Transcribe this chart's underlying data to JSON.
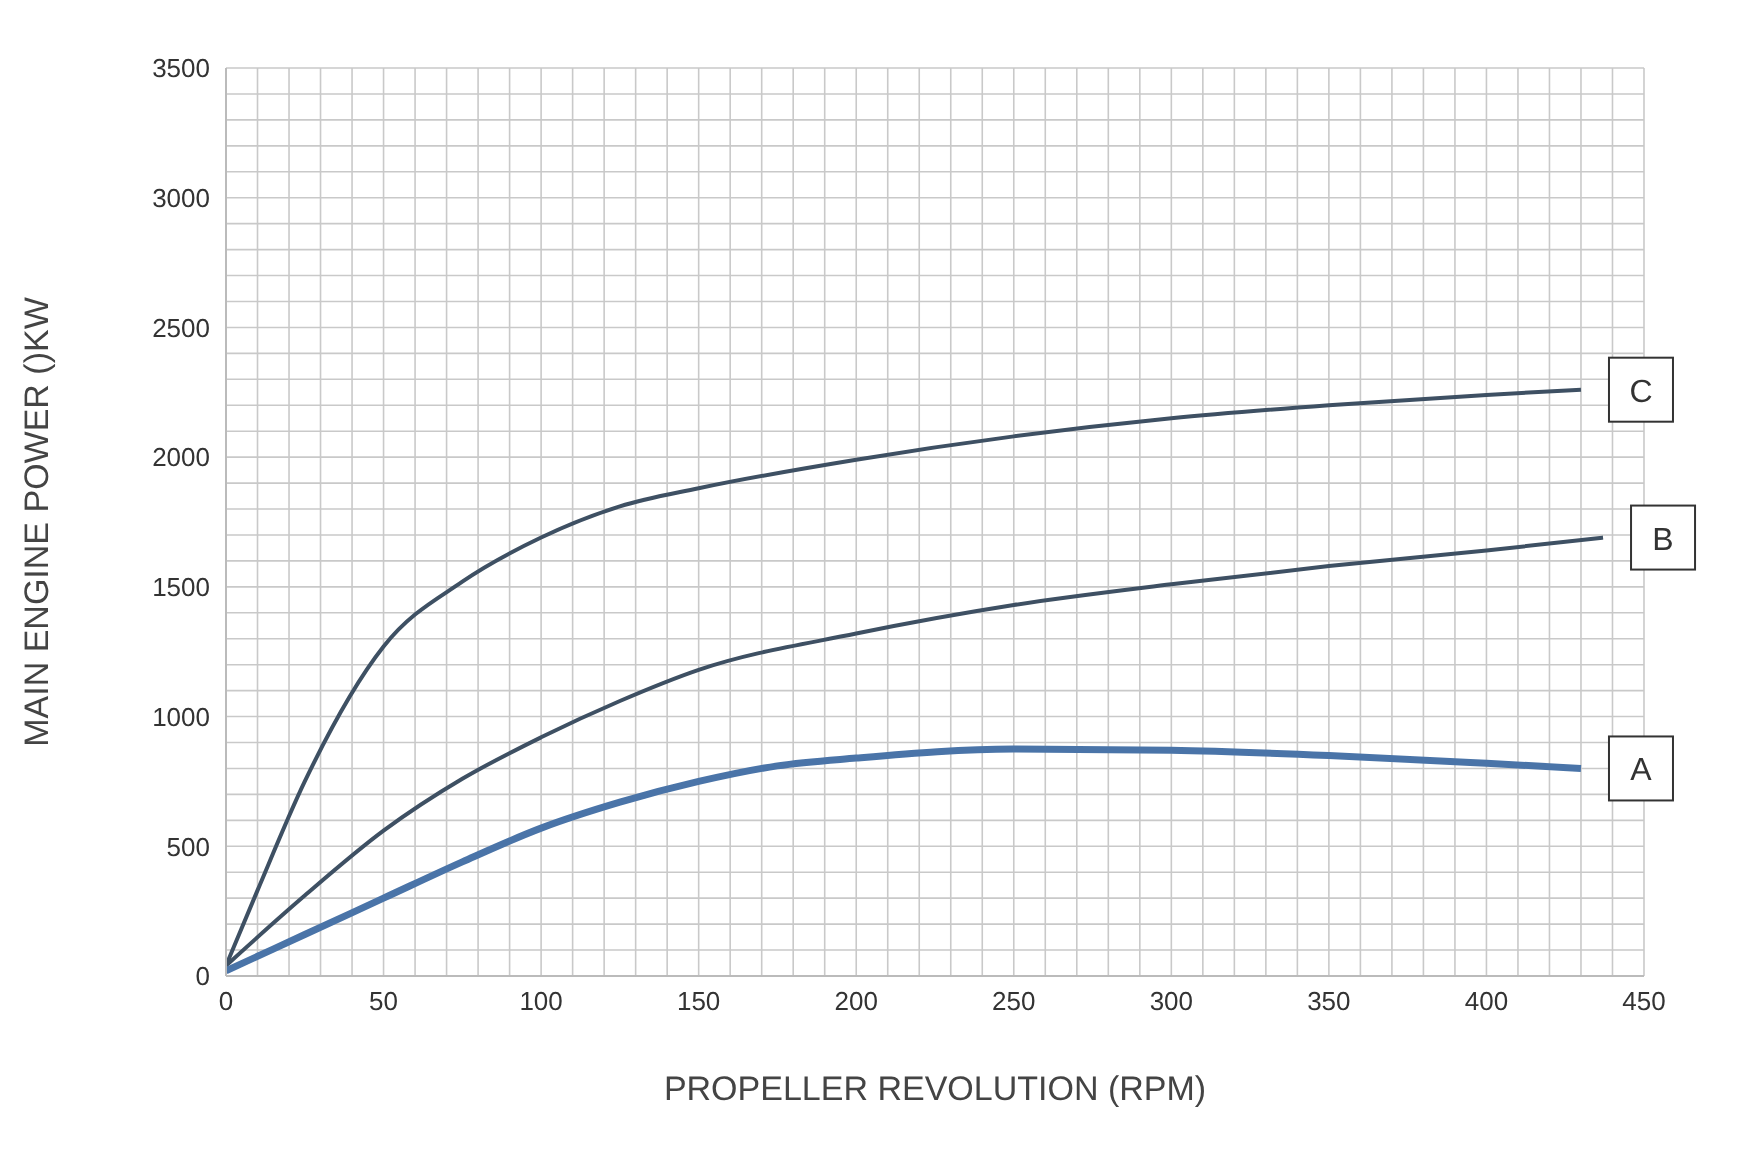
{
  "chart_data": {
    "type": "line",
    "xlabel": "PROPELLER REVOLUTION (RPM)",
    "ylabel": "MAIN ENGINE POWER ()KW",
    "xlim": [
      0,
      450
    ],
    "ylim": [
      0,
      3500
    ],
    "xticks": [
      0,
      {
        "value": 10,
        "label": null
      },
      {
        "value": 20,
        "label": null
      },
      {
        "value": 30,
        "label": null
      },
      {
        "value": 40,
        "label": null
      },
      50,
      {
        "value": 60,
        "label": null
      },
      {
        "value": 70,
        "label": null
      },
      {
        "value": 80,
        "label": null
      },
      {
        "value": 90,
        "label": null
      },
      100,
      {
        "value": 110,
        "label": null
      },
      {
        "value": 120,
        "label": null
      },
      {
        "value": 130,
        "label": null
      },
      {
        "value": 140,
        "label": null
      },
      150,
      {
        "value": 160,
        "label": null
      },
      {
        "value": 170,
        "label": null
      },
      {
        "value": 180,
        "label": null
      },
      {
        "value": 190,
        "label": null
      },
      200,
      {
        "value": 210,
        "label": null
      },
      {
        "value": 220,
        "label": null
      },
      {
        "value": 230,
        "label": null
      },
      {
        "value": 240,
        "label": null
      },
      250,
      {
        "value": 260,
        "label": null
      },
      {
        "value": 270,
        "label": null
      },
      {
        "value": 280,
        "label": null
      },
      {
        "value": 290,
        "label": null
      },
      300,
      {
        "value": 310,
        "label": null
      },
      {
        "value": 320,
        "label": null
      },
      {
        "value": 330,
        "label": null
      },
      {
        "value": 340,
        "label": null
      },
      350,
      {
        "value": 360,
        "label": null
      },
      {
        "value": 370,
        "label": null
      },
      {
        "value": 380,
        "label": null
      },
      {
        "value": 390,
        "label": null
      },
      400,
      {
        "value": 410,
        "label": null
      },
      {
        "value": 420,
        "label": null
      },
      {
        "value": 430,
        "label": null
      },
      {
        "value": 440,
        "label": null
      },
      450
    ],
    "yticks": [
      0,
      {
        "value": 100,
        "label": null
      },
      {
        "value": 200,
        "label": null
      },
      {
        "value": 300,
        "label": null
      },
      {
        "value": 400,
        "label": null
      },
      500,
      {
        "value": 600,
        "label": null
      },
      {
        "value": 700,
        "label": null
      },
      {
        "value": 800,
        "label": null
      },
      {
        "value": 900,
        "label": null
      },
      1000,
      {
        "value": 1100,
        "label": null
      },
      {
        "value": 1200,
        "label": null
      },
      {
        "value": 1300,
        "label": null
      },
      {
        "value": 1400,
        "label": null
      },
      1500,
      {
        "value": 1600,
        "label": null
      },
      {
        "value": 1700,
        "label": null
      },
      {
        "value": 1800,
        "label": null
      },
      {
        "value": 1900,
        "label": null
      },
      2000,
      {
        "value": 2100,
        "label": null
      },
      {
        "value": 2200,
        "label": null
      },
      {
        "value": 2300,
        "label": null
      },
      {
        "value": 2400,
        "label": null
      },
      2500,
      {
        "value": 2600,
        "label": null
      },
      {
        "value": 2700,
        "label": null
      },
      {
        "value": 2800,
        "label": null
      },
      {
        "value": 2900,
        "label": null
      },
      3000,
      {
        "value": 3100,
        "label": null
      },
      {
        "value": 3200,
        "label": null
      },
      {
        "value": 3300,
        "label": null
      },
      {
        "value": 3400,
        "label": null
      },
      3500
    ],
    "grid": true,
    "marker": "none",
    "series": [
      {
        "color": "#3e5063",
        "x": [
          0,
          10,
          25,
          50,
          75,
          100,
          125,
          150,
          200,
          250,
          300,
          350,
          400,
          430
        ],
        "values": [
          40,
          330,
          750,
          1270,
          1520,
          1690,
          1810,
          1880,
          1990,
          2080,
          2150,
          2200,
          2240,
          2260
        ]
      },
      {
        "color": "#3e5063",
        "x": [
          0,
          25,
          50,
          75,
          100,
          125,
          150,
          200,
          250,
          300,
          350,
          400,
          437
        ],
        "values": [
          40,
          310,
          560,
          760,
          920,
          1060,
          1180,
          1320,
          1430,
          1510,
          1580,
          1640,
          1690
        ]
      },
      {
        "color": "#4a74a8",
        "x": [
          0,
          25,
          50,
          75,
          100,
          125,
          150,
          175,
          200,
          250,
          300,
          350,
          400,
          430
        ],
        "values": [
          20,
          160,
          300,
          440,
          570,
          670,
          750,
          810,
          840,
          875,
          870,
          850,
          820,
          800
        ]
      }
    ],
    "annotations": [
      "C",
      "B",
      "A"
    ]
  }
}
